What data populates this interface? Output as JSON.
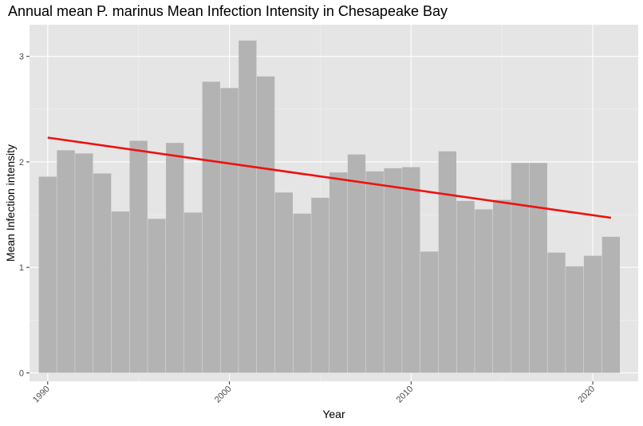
{
  "chart_data": {
    "type": "bar",
    "title": "Annual mean P. marinus Mean Infection Intensity in Chesapeake Bay",
    "xlabel": "Year",
    "ylabel": "Mean Infection intensity",
    "x": [
      1990,
      1991,
      1992,
      1993,
      1994,
      1995,
      1996,
      1997,
      1998,
      1999,
      2000,
      2001,
      2002,
      2003,
      2004,
      2005,
      2006,
      2007,
      2008,
      2009,
      2010,
      2011,
      2012,
      2013,
      2014,
      2015,
      2016,
      2017,
      2018,
      2019,
      2020,
      2021
    ],
    "values": [
      1.86,
      2.11,
      2.08,
      1.89,
      1.53,
      2.2,
      1.46,
      2.18,
      1.52,
      2.76,
      2.7,
      3.15,
      2.81,
      1.71,
      1.51,
      1.66,
      1.9,
      2.07,
      1.91,
      1.94,
      1.95,
      1.15,
      2.1,
      1.63,
      1.55,
      1.64,
      1.99,
      1.99,
      1.14,
      1.01,
      1.11,
      1.29
    ],
    "x_ticks": [
      "1990",
      "2000",
      "2010",
      "2020"
    ],
    "y_ticks": [
      "0",
      "1",
      "2",
      "3"
    ],
    "xlim": [
      1989.0,
      2022.5
    ],
    "ylim": [
      -0.08,
      3.3
    ],
    "trend_line": {
      "x": [
        1990,
        2021
      ],
      "y": [
        2.23,
        1.47
      ],
      "color": "#ee1111"
    },
    "bar_color": "#b3b3b3",
    "panel_color": "#e5e5e5",
    "grid": true
  }
}
